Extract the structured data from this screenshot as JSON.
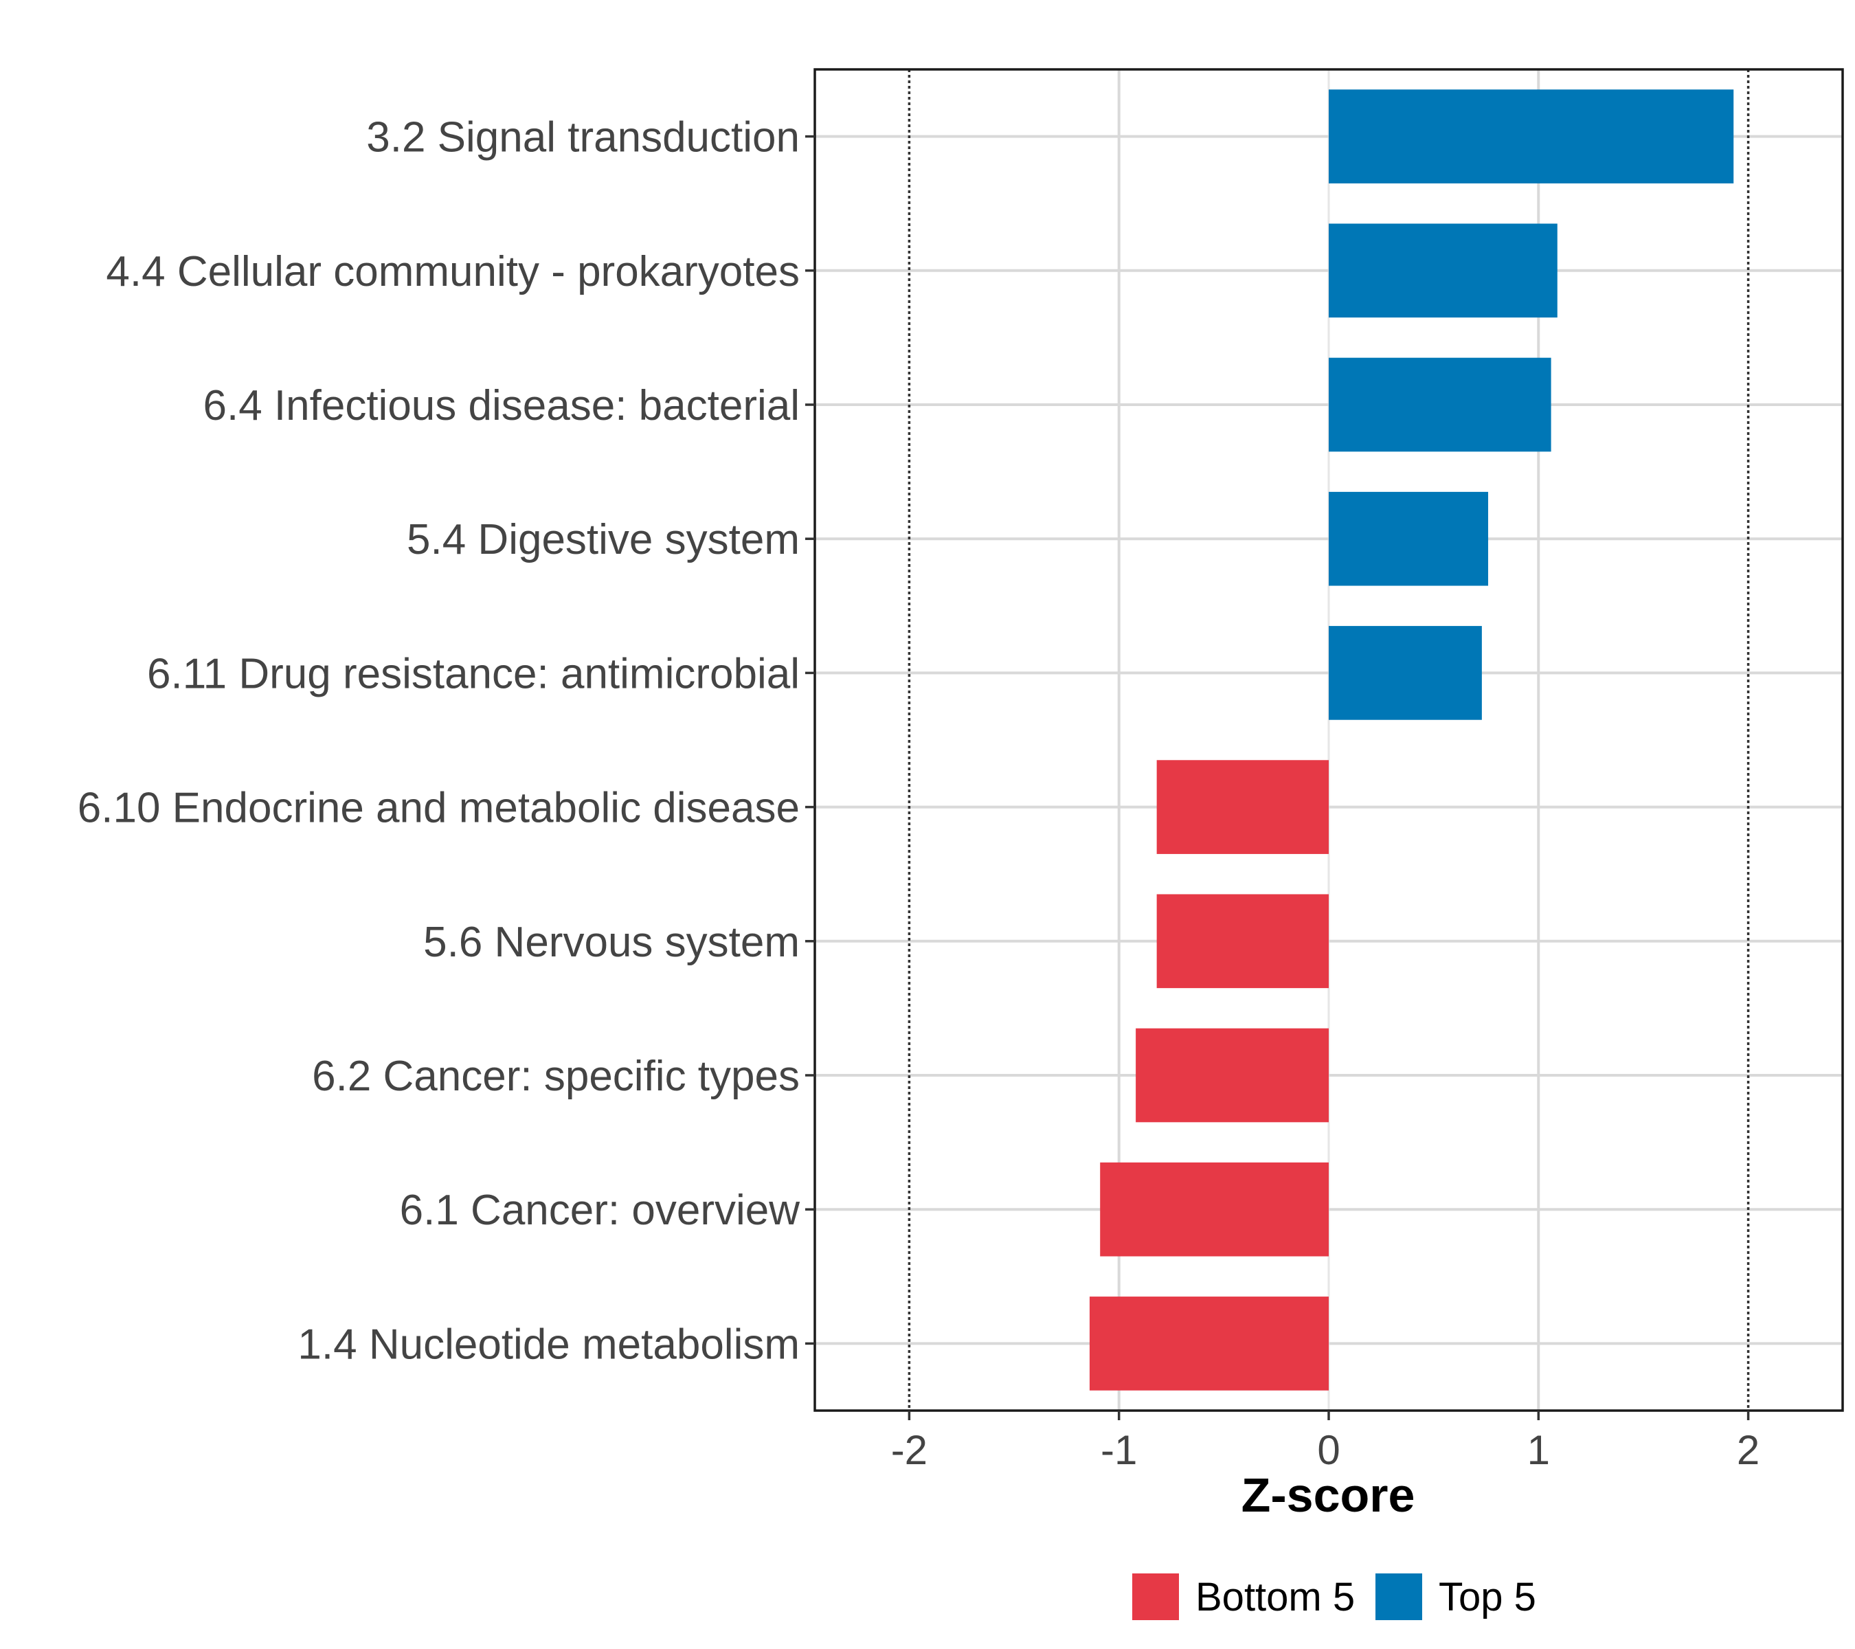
{
  "chart_data": {
    "type": "bar",
    "orientation": "horizontal",
    "title": "",
    "xlabel": "Z-score",
    "ylabel": "",
    "xlim": [
      -2.45,
      2.45
    ],
    "xticks": [
      -2,
      -1,
      0,
      1,
      2
    ],
    "xtick_labels": [
      "-2",
      "-1",
      "0",
      "1",
      "2"
    ],
    "reference_lines": [
      -2,
      2
    ],
    "grid": true,
    "legend_position": "bottom",
    "categories": [
      "3.2 Signal transduction",
      "4.4 Cellular community - prokaryotes",
      "6.4 Infectious disease: bacterial",
      "5.4 Digestive system",
      "6.11 Drug resistance: antimicrobial",
      "6.10 Endocrine and metabolic disease",
      "5.6 Nervous system",
      "6.2 Cancer: specific types",
      "6.1 Cancer: overview",
      "1.4 Nucleotide metabolism"
    ],
    "values": [
      1.93,
      1.09,
      1.06,
      0.76,
      0.73,
      -0.82,
      -0.82,
      -0.92,
      -1.09,
      -1.14
    ],
    "groups": [
      "Top 5",
      "Top 5",
      "Top 5",
      "Top 5",
      "Top 5",
      "Bottom 5",
      "Bottom 5",
      "Bottom 5",
      "Bottom 5",
      "Bottom 5"
    ],
    "legend": [
      {
        "label": "Bottom 5",
        "color": "#E63946"
      },
      {
        "label": "Top 5",
        "color": "#0077B6"
      }
    ]
  }
}
